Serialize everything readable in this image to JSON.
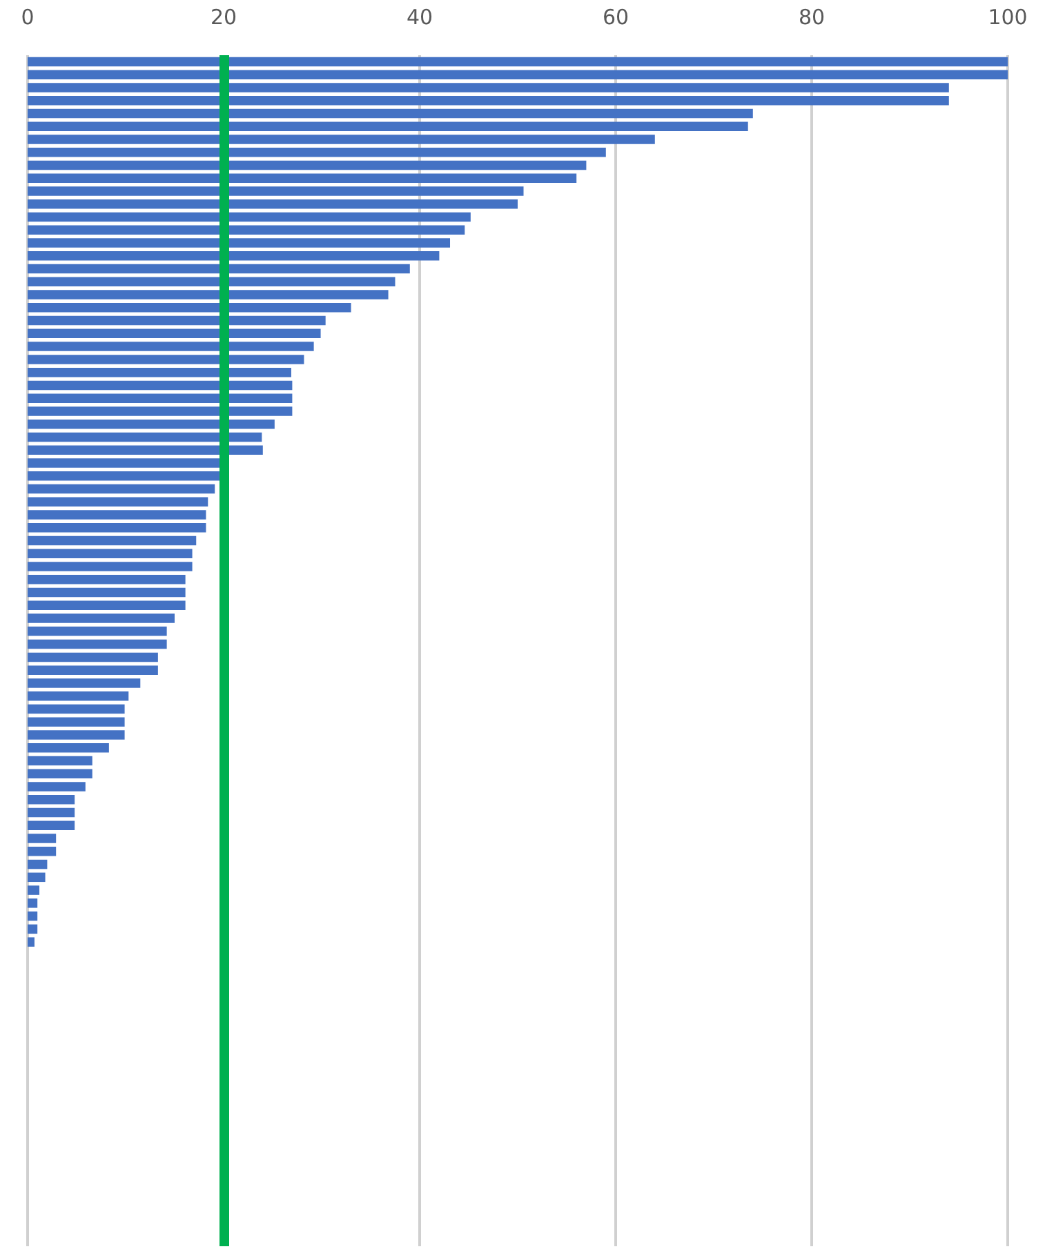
{
  "chart_data": {
    "type": "bar",
    "orientation": "horizontal",
    "categories": [
      null,
      null,
      null,
      null,
      null,
      null,
      null,
      null,
      null,
      null,
      null,
      null,
      null,
      null,
      null,
      null,
      null,
      null,
      null,
      null,
      null,
      null,
      null,
      null,
      null,
      null,
      null,
      null,
      null,
      null,
      null,
      null,
      null,
      null,
      null,
      null,
      null,
      null,
      null,
      null,
      null,
      null,
      null,
      null,
      null,
      null,
      null,
      null,
      null,
      null,
      null,
      null,
      null,
      null,
      null,
      null,
      null,
      null,
      null,
      null,
      null,
      null,
      null,
      null,
      null,
      null,
      null,
      null,
      null,
      null,
      null,
      null,
      null,
      null,
      null,
      null,
      null,
      null,
      null,
      null,
      null,
      null,
      null,
      null,
      null,
      null,
      null,
      null,
      null,
      null,
      null,
      null
    ],
    "values": [
      100,
      100,
      94,
      94,
      74,
      73.5,
      64,
      59,
      57,
      56,
      50.6,
      50,
      45.2,
      44.6,
      43.1,
      42,
      39,
      37.5,
      36.8,
      33,
      30.4,
      29.9,
      29.2,
      28.2,
      26.9,
      27,
      27,
      27,
      25.2,
      23.9,
      24,
      19.9,
      19.9,
      19.1,
      18.4,
      18.2,
      18.2,
      17.2,
      16.8,
      16.8,
      16.1,
      16.1,
      16.1,
      15,
      14.2,
      14.2,
      13.3,
      13.3,
      11.5,
      10.3,
      9.9,
      9.9,
      9.9,
      8.3,
      6.6,
      6.6,
      5.9,
      4.8,
      4.8,
      4.8,
      2.9,
      2.9,
      2,
      1.8,
      1.2,
      1,
      1,
      1,
      0.7,
      null,
      null,
      null,
      null,
      null,
      null,
      null,
      null,
      null,
      null,
      null,
      null,
      null,
      null,
      null,
      null,
      null,
      null,
      null,
      null,
      null,
      null,
      null
    ],
    "color": "#4472c4",
    "xlim": [
      0,
      100
    ],
    "xticks": [
      0,
      20,
      40,
      60,
      80,
      100
    ],
    "grid": "x",
    "tick_labels": "x",
    "ref_lines": [
      {
        "axis": "x",
        "value": 20,
        "color": "#00b050",
        "line_style": "solid"
      }
    ]
  }
}
